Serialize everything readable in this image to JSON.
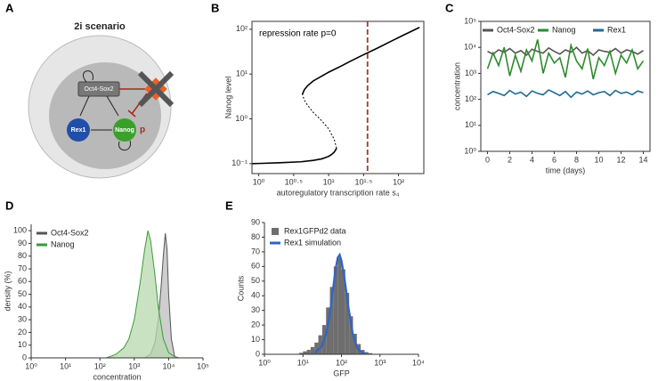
{
  "panel_labels": [
    "A",
    "B",
    "C",
    "D",
    "E"
  ],
  "diagram": {
    "title": "2i scenario",
    "nodes": [
      "Oct4-Sox2",
      "Rex1",
      "Nanog"
    ],
    "edge_label": "p"
  },
  "chart_data": [
    {
      "type": "line",
      "box": true,
      "xlog": true,
      "ylog": true,
      "xlabel": "autoregulatory transcription rate s₄",
      "ylabel": "Nanog level",
      "annotation": "repression rate p=0",
      "xlim": [
        0.8,
        230
      ],
      "ylim": [
        0.06,
        150
      ],
      "xticks": [
        {
          "value": 1,
          "label": "10⁰"
        },
        {
          "value": 3.162,
          "label": "10⁰·⁵"
        },
        {
          "value": 10,
          "label": "10¹"
        },
        {
          "value": 31.62,
          "label": "10¹·⁵"
        },
        {
          "value": 100,
          "label": "10²"
        }
      ],
      "yticks": [
        {
          "value": 0.1,
          "label": "10⁻¹"
        },
        {
          "value": 1,
          "label": "10⁰"
        },
        {
          "value": 10,
          "label": "10¹"
        },
        {
          "value": 100,
          "label": "10²"
        }
      ],
      "vline": {
        "x": 36,
        "color": "#a33a2e",
        "dash": true
      },
      "series": [
        {
          "color": "#000000",
          "dash": false,
          "x": [
            0.8,
            1,
            2,
            4,
            6,
            8,
            10,
            11,
            12,
            13
          ],
          "values": [
            0.1,
            0.101,
            0.105,
            0.11,
            0.118,
            0.128,
            0.145,
            0.16,
            0.18,
            0.22
          ]
        },
        {
          "color": "#000000",
          "dash": true,
          "x": [
            13,
            12,
            10,
            8,
            6,
            5,
            4.5,
            4.2
          ],
          "values": [
            0.22,
            0.35,
            0.6,
            0.9,
            1.4,
            2,
            2.6,
            3.5
          ]
        },
        {
          "color": "#000000",
          "dash": false,
          "x": [
            4.2,
            4.5,
            5,
            6,
            8,
            10,
            15,
            20,
            30,
            50,
            80,
            120,
            200
          ],
          "values": [
            3.5,
            4.5,
            5.5,
            7,
            9,
            11,
            15,
            19,
            26,
            38,
            55,
            75,
            110
          ]
        }
      ]
    },
    {
      "type": "line",
      "box": true,
      "xlog": false,
      "ylog": true,
      "legend": "top",
      "xlabel": "time (days)",
      "ylabel": "concentration",
      "xlim": [
        -0.6,
        14.6
      ],
      "ylim": [
        1,
        100000
      ],
      "xticks": [
        0,
        2,
        4,
        6,
        8,
        10,
        12,
        14
      ],
      "yticks": [
        {
          "value": 1,
          "label": "10⁰"
        },
        {
          "value": 10,
          "label": "10¹"
        },
        {
          "value": 100,
          "label": "10²"
        },
        {
          "value": 1000,
          "label": "10³"
        },
        {
          "value": 10000,
          "label": "10⁴"
        },
        {
          "value": 100000,
          "label": "10⁵"
        }
      ],
      "x": [
        0,
        0.5,
        1,
        1.5,
        2,
        2.5,
        3,
        3.5,
        4,
        4.5,
        5,
        5.5,
        6,
        6.5,
        7,
        7.5,
        8,
        8.5,
        9,
        9.5,
        10,
        10.5,
        11,
        11.5,
        12,
        12.5,
        13,
        13.5,
        14
      ],
      "series": [
        {
          "name": "Oct4-Sox2",
          "color": "#555555",
          "values": [
            7000,
            5500,
            8000,
            6500,
            9000,
            6000,
            7500,
            5000,
            8500,
            7000,
            6000,
            9500,
            7000,
            5500,
            8000,
            6500,
            10000,
            6000,
            7500,
            5000,
            8000,
            7000,
            6500,
            9000,
            6000,
            8000,
            7000,
            5500,
            7500
          ]
        },
        {
          "name": "Nanog",
          "color": "#2e8b2e",
          "values": [
            1500,
            6000,
            2000,
            10000,
            800,
            5000,
            1200,
            8000,
            3000,
            20000,
            1000,
            6000,
            2500,
            4000,
            700,
            12000,
            3000,
            1500,
            9000,
            600,
            4000,
            2000,
            7000,
            1000,
            5000,
            2500,
            8000,
            1500,
            3000
          ]
        },
        {
          "name": "Rex1",
          "color": "#1f6a96",
          "values": [
            150,
            200,
            170,
            140,
            220,
            160,
            190,
            130,
            210,
            170,
            150,
            230,
            180,
            140,
            200,
            120,
            190,
            160,
            210,
            150,
            180,
            200,
            140,
            220,
            170,
            190,
            150,
            210,
            180
          ]
        }
      ]
    },
    {
      "type": "area",
      "box": false,
      "xlog": true,
      "ylog": false,
      "legend": "top-left",
      "xlabel": "concentration",
      "ylabel": "density (%)",
      "xlim": [
        1,
        100000
      ],
      "ylim": [
        0,
        105
      ],
      "xticks": [
        {
          "value": 1,
          "label": "10⁰"
        },
        {
          "value": 10,
          "label": "10¹"
        },
        {
          "value": 100,
          "label": "10²"
        },
        {
          "value": 1000,
          "label": "10³"
        },
        {
          "value": 10000,
          "label": "10⁴"
        },
        {
          "value": 100000,
          "label": "10⁵"
        }
      ],
      "yticks": [
        0,
        10,
        20,
        30,
        40,
        50,
        60,
        70,
        80,
        90,
        100
      ],
      "series": [
        {
          "name": "Oct4-Sox2",
          "color": "#555555",
          "fill": "#bdbdbd",
          "x": [
            2000,
            3000,
            4000,
            5000,
            6000,
            7000,
            8000,
            9000,
            10000,
            12000,
            15000
          ],
          "values": [
            0,
            3,
            12,
            30,
            55,
            80,
            98,
            85,
            50,
            15,
            1
          ]
        },
        {
          "name": "Nanog",
          "color": "#3a9a3a",
          "fill": "#b7d9ae",
          "x": [
            150,
            200,
            300,
            500,
            700,
            1000,
            1500,
            2000,
            2500,
            3000,
            4000,
            5000,
            7000,
            10000,
            15000,
            20000
          ],
          "values": [
            0,
            1,
            3,
            8,
            15,
            30,
            60,
            85,
            100,
            92,
            65,
            40,
            15,
            4,
            1,
            0
          ]
        }
      ]
    },
    {
      "type": "histogram",
      "box": false,
      "xlog": true,
      "ylog": false,
      "legend": "top-left",
      "xlabel": "GFP",
      "ylabel": "Counts",
      "xlim": [
        1,
        10000
      ],
      "ylim": [
        0,
        90
      ],
      "xticks": [
        {
          "value": 1,
          "label": "10⁰"
        },
        {
          "value": 10,
          "label": "10¹"
        },
        {
          "value": 100,
          "label": "10²"
        },
        {
          "value": 1000,
          "label": "10³"
        },
        {
          "value": 10000,
          "label": "10⁴"
        }
      ],
      "yticks": [
        0,
        10,
        20,
        30,
        40,
        50,
        60,
        70,
        80,
        90
      ],
      "name": "Rex1GFPd2 data",
      "color": "#6e6e6e",
      "bins": [
        7.94,
        10,
        12.59,
        15.85,
        19.95,
        25.12,
        31.62,
        39.81,
        50.12,
        63.1,
        79.43,
        100,
        125.9,
        158.5,
        199.5,
        251.2,
        316.2,
        398.1,
        501.2,
        631,
        794.3
      ],
      "values": [
        1,
        2,
        3,
        5,
        8,
        13,
        20,
        32,
        46,
        60,
        66,
        58,
        42,
        26,
        14,
        7,
        3,
        1.5,
        0.8,
        0.3
      ],
      "series": [
        {
          "name": "Rex1 simulation",
          "color": "#2f64c8",
          "x": [
            20,
            30,
            40,
            50,
            60,
            70,
            80,
            90,
            100,
            120,
            150,
            200,
            250,
            300,
            400
          ],
          "values": [
            1,
            5,
            14,
            28,
            44,
            58,
            66,
            68,
            64,
            52,
            33,
            13,
            5,
            2,
            0.5
          ]
        }
      ]
    }
  ]
}
